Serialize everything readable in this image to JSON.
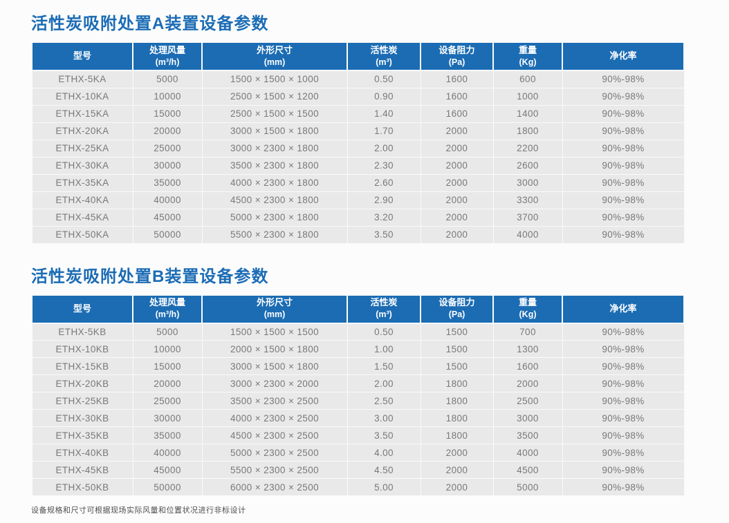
{
  "page": {
    "accent_blue": "#1b6cb3",
    "row_gray": "#e9e9e9",
    "footer_note": "设备规格和尺寸可根据现场实际风量和位置状况进行非标设计"
  },
  "tables": [
    {
      "title": "活性炭吸附处置A装置设备参数",
      "columns": [
        {
          "label": "型号",
          "unit": ""
        },
        {
          "label": "处理风量",
          "unit": "(m³/h)"
        },
        {
          "label": "外形尺寸",
          "unit": "(mm)"
        },
        {
          "label": "活性炭",
          "unit": "(m³)"
        },
        {
          "label": "设备阻力",
          "unit": "(Pa)"
        },
        {
          "label": "重量",
          "unit": "(Kg)"
        },
        {
          "label": "净化率",
          "unit": ""
        }
      ],
      "rows": [
        [
          "ETHX-5KA",
          "5000",
          "1500 × 1500 × 1000",
          "0.50",
          "1600",
          "600",
          "90%-98%"
        ],
        [
          "ETHX-10KA",
          "10000",
          "2500 × 1500 × 1200",
          "0.90",
          "1600",
          "1000",
          "90%-98%"
        ],
        [
          "ETHX-15KA",
          "15000",
          "2500 × 1500 × 1500",
          "1.40",
          "1600",
          "1400",
          "90%-98%"
        ],
        [
          "ETHX-20KA",
          "20000",
          "3000 × 1500 × 1800",
          "1.70",
          "2000",
          "1800",
          "90%-98%"
        ],
        [
          "ETHX-25KA",
          "25000",
          "3000 × 2300 × 1800",
          "2.00",
          "2000",
          "2200",
          "90%-98%"
        ],
        [
          "ETHX-30KA",
          "30000",
          "3500 × 2300 × 1800",
          "2.30",
          "2000",
          "2600",
          "90%-98%"
        ],
        [
          "ETHX-35KA",
          "35000",
          "4000 × 2300 × 1800",
          "2.60",
          "2000",
          "3000",
          "90%-98%"
        ],
        [
          "ETHX-40KA",
          "40000",
          "4500 × 2300 × 1800",
          "2.90",
          "2000",
          "3300",
          "90%-98%"
        ],
        [
          "ETHX-45KA",
          "45000",
          "5000 × 2300 × 1800",
          "3.20",
          "2000",
          "3700",
          "90%-98%"
        ],
        [
          "ETHX-50KA",
          "50000",
          "5500 × 2300 × 1800",
          "3.50",
          "2000",
          "4000",
          "90%-98%"
        ]
      ]
    },
    {
      "title": "活性炭吸附处置B装置设备参数",
      "columns": [
        {
          "label": "型号",
          "unit": ""
        },
        {
          "label": "处理风量",
          "unit": "(m³/h)"
        },
        {
          "label": "外形尺寸",
          "unit": "(mm)"
        },
        {
          "label": "活性炭",
          "unit": "(m³)"
        },
        {
          "label": "设备阻力",
          "unit": "(Pa)"
        },
        {
          "label": "重量",
          "unit": "(Kg)"
        },
        {
          "label": "净化率",
          "unit": ""
        }
      ],
      "rows": [
        [
          "ETHX-5KB",
          "5000",
          "1500 × 1500 × 1500",
          "0.50",
          "1500",
          "700",
          "90%-98%"
        ],
        [
          "ETHX-10KB",
          "10000",
          "2000 × 1500 × 1800",
          "1.00",
          "1500",
          "1300",
          "90%-98%"
        ],
        [
          "ETHX-15KB",
          "15000",
          "3000 × 1500 × 1800",
          "1.50",
          "1500",
          "1600",
          "90%-98%"
        ],
        [
          "ETHX-20KB",
          "20000",
          "3000 × 2300 × 2000",
          "2.00",
          "1800",
          "2000",
          "90%-98%"
        ],
        [
          "ETHX-25KB",
          "25000",
          "3500 × 2300 × 2500",
          "2.50",
          "1800",
          "2500",
          "90%-98%"
        ],
        [
          "ETHX-30KB",
          "30000",
          "4000 × 2300 × 2500",
          "3.00",
          "1800",
          "3000",
          "90%-98%"
        ],
        [
          "ETHX-35KB",
          "35000",
          "4500 × 2300 × 2500",
          "3.50",
          "1800",
          "3500",
          "90%-98%"
        ],
        [
          "ETHX-40KB",
          "40000",
          "5000 × 2300 × 2500",
          "4.00",
          "2000",
          "4000",
          "90%-98%"
        ],
        [
          "ETHX-45KB",
          "45000",
          "5500 × 2300 × 2500",
          "4.50",
          "2000",
          "4500",
          "90%-98%"
        ],
        [
          "ETHX-50KB",
          "50000",
          "6000 × 2300 × 2500",
          "5.00",
          "2000",
          "5000",
          "90%-98%"
        ]
      ]
    }
  ]
}
